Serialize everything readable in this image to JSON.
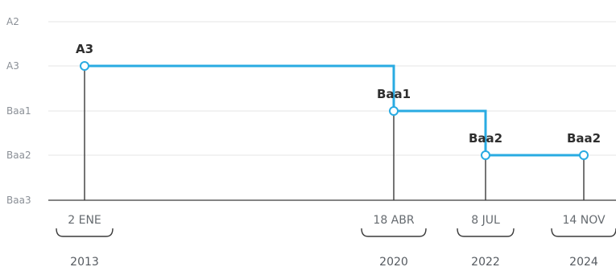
{
  "chart_data": {
    "type": "line",
    "step": true,
    "y_categories": [
      "A2",
      "A3",
      "Baa1",
      "Baa2",
      "Baa3"
    ],
    "points": [
      {
        "year": "2013",
        "date": "2 ENE",
        "rating": "A3",
        "label": "A3"
      },
      {
        "year": "2020",
        "date": "18 ABR",
        "rating": "Baa1",
        "label": "Baa1"
      },
      {
        "year": "2022",
        "date": "8 JUL",
        "rating": "Baa2",
        "label": "Baa2"
      },
      {
        "year": "2024",
        "date": "14 NOV",
        "rating": "Baa2",
        "label": "Baa2"
      }
    ],
    "grid": true
  },
  "colors": {
    "line": "#29abe2",
    "grid": "#e6e6e6",
    "axis": "#3a3a3a"
  }
}
